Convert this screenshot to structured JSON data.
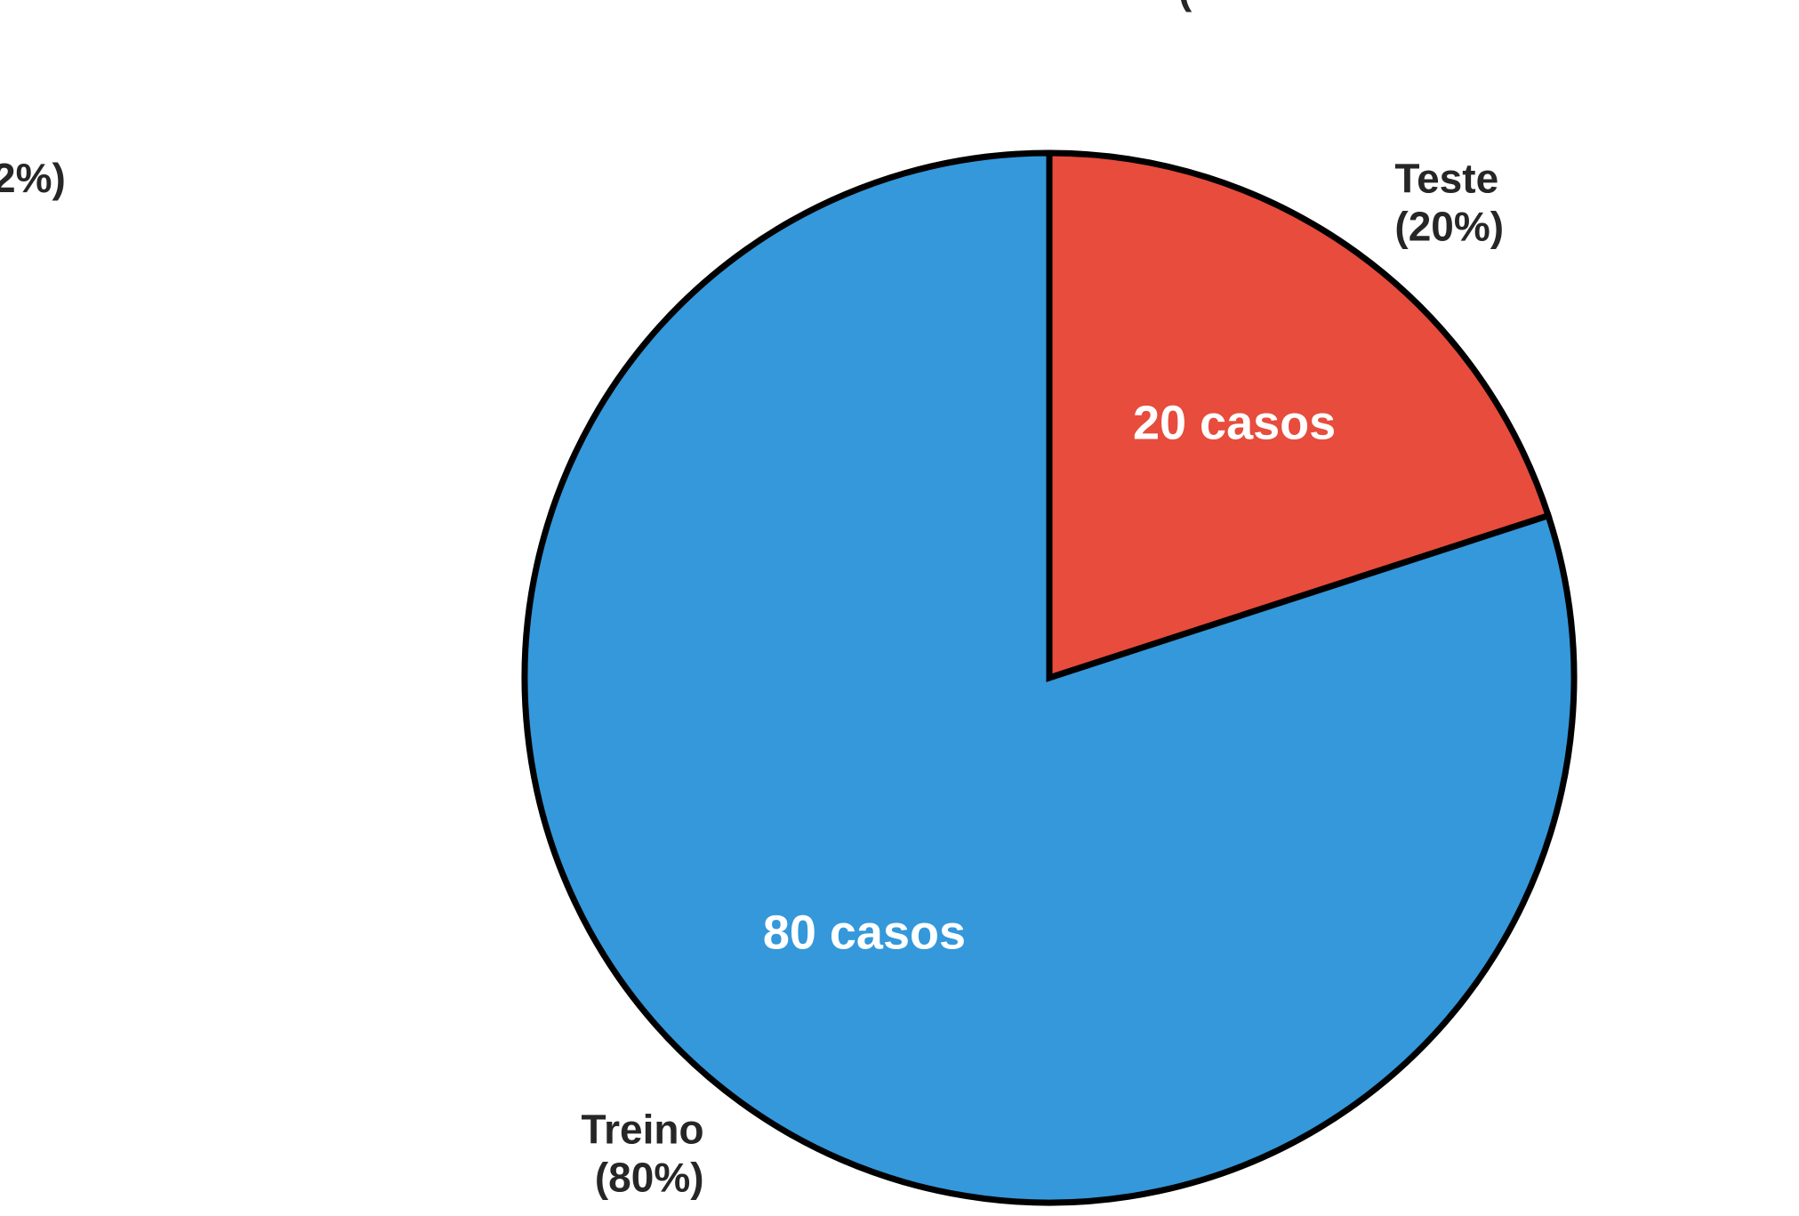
{
  "chart_data": {
    "type": "pie",
    "start_angle": 90,
    "direction": "clockwise",
    "slices": [
      {
        "label": "Teste",
        "percent_label": "(20%)",
        "value": 20,
        "inner_label": "20 casos",
        "color": "#e74c3c"
      },
      {
        "label": "Treino",
        "percent_label": "(80%)",
        "value": 80,
        "inner_label": "80 casos",
        "color": "#3498db"
      }
    ],
    "edge_color": "#000000",
    "partial_fragments": {
      "left_label": "2%)",
      "title_fragment": "("
    }
  }
}
